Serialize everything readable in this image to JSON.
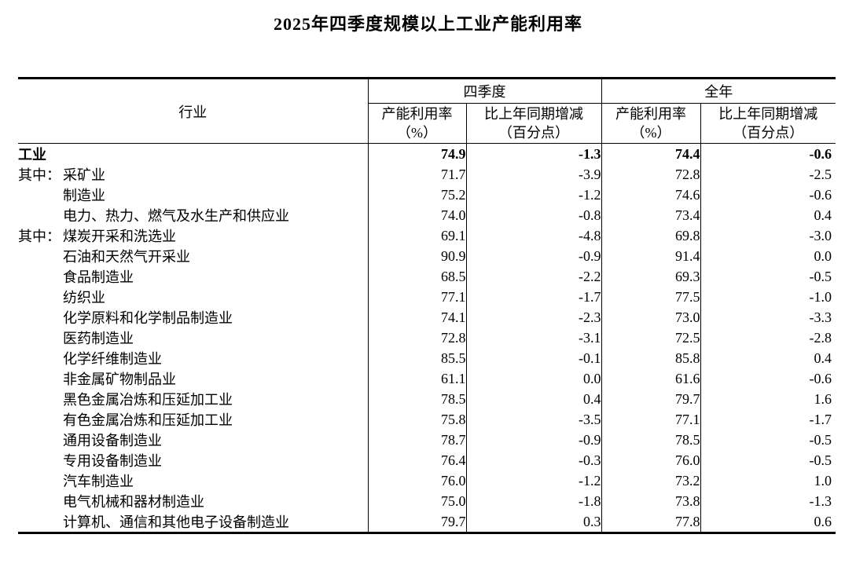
{
  "title": "2025年四季度规模以上工业产能利用率",
  "table": {
    "header": {
      "industry": "行业",
      "q4_group": "四季度",
      "fy_group": "全年",
      "util_line1": "产能利用率",
      "util_line2": "（%）",
      "change_line1": "比上年同期增减",
      "change_line2": "（百分点）"
    },
    "rows": [
      {
        "prefix": "",
        "name": "工业",
        "indent": false,
        "bold": true,
        "q4_util": "74.9",
        "q4_change": "-1.3",
        "fy_util": "74.4",
        "fy_change": "-0.6"
      },
      {
        "prefix": "其中：",
        "name": "采矿业",
        "indent": true,
        "bold": false,
        "q4_util": "71.7",
        "q4_change": "-3.9",
        "fy_util": "72.8",
        "fy_change": "-2.5"
      },
      {
        "prefix": "",
        "name": "制造业",
        "indent": true,
        "bold": false,
        "q4_util": "75.2",
        "q4_change": "-1.2",
        "fy_util": "74.6",
        "fy_change": "-0.6"
      },
      {
        "prefix": "",
        "name": "电力、热力、燃气及水生产和供应业",
        "indent": true,
        "bold": false,
        "q4_util": "74.0",
        "q4_change": "-0.8",
        "fy_util": "73.4",
        "fy_change": "0.4"
      },
      {
        "prefix": "其中：",
        "name": "煤炭开采和洗选业",
        "indent": true,
        "bold": false,
        "q4_util": "69.1",
        "q4_change": "-4.8",
        "fy_util": "69.8",
        "fy_change": "-3.0"
      },
      {
        "prefix": "",
        "name": "石油和天然气开采业",
        "indent": true,
        "bold": false,
        "q4_util": "90.9",
        "q4_change": "-0.9",
        "fy_util": "91.4",
        "fy_change": "0.0"
      },
      {
        "prefix": "",
        "name": "食品制造业",
        "indent": true,
        "bold": false,
        "q4_util": "68.5",
        "q4_change": "-2.2",
        "fy_util": "69.3",
        "fy_change": "-0.5"
      },
      {
        "prefix": "",
        "name": "纺织业",
        "indent": true,
        "bold": false,
        "q4_util": "77.1",
        "q4_change": "-1.7",
        "fy_util": "77.5",
        "fy_change": "-1.0"
      },
      {
        "prefix": "",
        "name": "化学原料和化学制品制造业",
        "indent": true,
        "bold": false,
        "q4_util": "74.1",
        "q4_change": "-2.3",
        "fy_util": "73.0",
        "fy_change": "-3.3"
      },
      {
        "prefix": "",
        "name": "医药制造业",
        "indent": true,
        "bold": false,
        "q4_util": "72.8",
        "q4_change": "-3.1",
        "fy_util": "72.5",
        "fy_change": "-2.8"
      },
      {
        "prefix": "",
        "name": "化学纤维制造业",
        "indent": true,
        "bold": false,
        "q4_util": "85.5",
        "q4_change": "-0.1",
        "fy_util": "85.8",
        "fy_change": "0.4"
      },
      {
        "prefix": "",
        "name": "非金属矿物制品业",
        "indent": true,
        "bold": false,
        "q4_util": "61.1",
        "q4_change": "0.0",
        "fy_util": "61.6",
        "fy_change": "-0.6"
      },
      {
        "prefix": "",
        "name": "黑色金属冶炼和压延加工业",
        "indent": true,
        "bold": false,
        "q4_util": "78.5",
        "q4_change": "0.4",
        "fy_util": "79.7",
        "fy_change": "1.6"
      },
      {
        "prefix": "",
        "name": "有色金属冶炼和压延加工业",
        "indent": true,
        "bold": false,
        "q4_util": "75.8",
        "q4_change": "-3.5",
        "fy_util": "77.1",
        "fy_change": "-1.7"
      },
      {
        "prefix": "",
        "name": "通用设备制造业",
        "indent": true,
        "bold": false,
        "q4_util": "78.7",
        "q4_change": "-0.9",
        "fy_util": "78.5",
        "fy_change": "-0.5"
      },
      {
        "prefix": "",
        "name": "专用设备制造业",
        "indent": true,
        "bold": false,
        "q4_util": "76.4",
        "q4_change": "-0.3",
        "fy_util": "76.0",
        "fy_change": "-0.5"
      },
      {
        "prefix": "",
        "name": "汽车制造业",
        "indent": true,
        "bold": false,
        "q4_util": "76.0",
        "q4_change": "-1.2",
        "fy_util": "73.2",
        "fy_change": "1.0"
      },
      {
        "prefix": "",
        "name": "电气机械和器材制造业",
        "indent": true,
        "bold": false,
        "q4_util": "75.0",
        "q4_change": "-1.8",
        "fy_util": "73.8",
        "fy_change": "-1.3"
      },
      {
        "prefix": "",
        "name": "计算机、通信和其他电子设备制造业",
        "indent": true,
        "bold": false,
        "q4_util": "79.7",
        "q4_change": "0.3",
        "fy_util": "77.8",
        "fy_change": "0.6"
      }
    ]
  }
}
